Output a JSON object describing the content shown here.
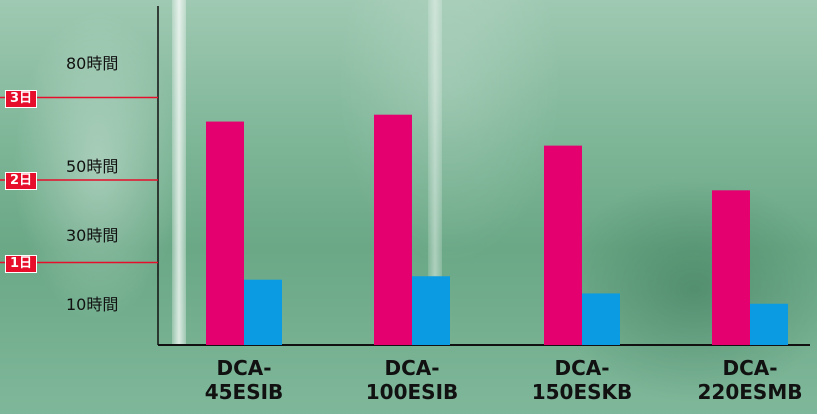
{
  "chart_data": {
    "type": "bar",
    "categories": [
      "DCA-\n45ESIB",
      "DCA-\n100ESIB",
      "DCA-\n150ESKB",
      "DCA-\n220ESMB"
    ],
    "series": [
      {
        "values": [
          65,
          67,
          58,
          45
        ],
        "color": "#e4006f"
      },
      {
        "values": [
          19,
          20,
          15,
          12
        ],
        "color": "#0a9be2"
      }
    ],
    "y_ticks": [
      {
        "value": 80,
        "label": "80時間"
      },
      {
        "value": 50,
        "label": "50時間"
      },
      {
        "value": 30,
        "label": "30時間"
      },
      {
        "value": 10,
        "label": "10時間"
      }
    ],
    "day_markers": [
      {
        "value": 72,
        "label": "3日"
      },
      {
        "value": 48,
        "label": "2日"
      },
      {
        "value": 24,
        "label": "1日"
      }
    ],
    "ylim": [
      0,
      80
    ],
    "title": "",
    "xlabel": "",
    "ylabel": "",
    "grid": false,
    "marker_color": "#e60e2a"
  }
}
